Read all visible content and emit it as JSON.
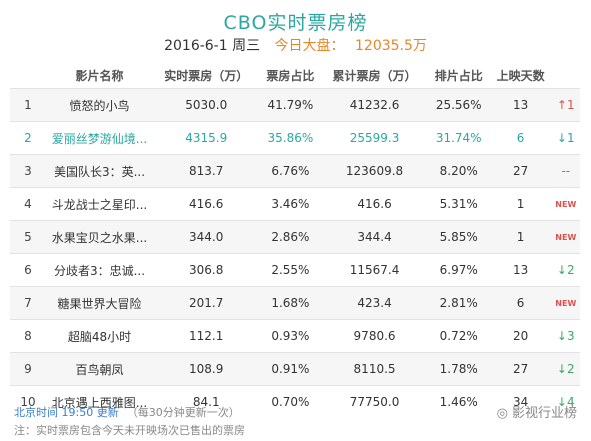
{
  "header": {
    "title": "CBO实时票房榜",
    "date": "2016-6-1 周三",
    "total_label": "今日大盘：",
    "total_value": "12035.5万"
  },
  "columns": [
    "影片名称",
    "实时票房（万）",
    "票房占比",
    "累计票房（万）",
    "排片占比",
    "上映天数"
  ],
  "rows": [
    {
      "rank": "1",
      "name": "愤怒的小鸟",
      "rt": "5030.0",
      "share": "41.79%",
      "cum": "41232.6",
      "sched": "25.56%",
      "days": "13",
      "trend": "↑1",
      "trend_type": "up"
    },
    {
      "rank": "2",
      "name": "爱丽丝梦游仙境...",
      "rt": "4315.9",
      "share": "35.86%",
      "cum": "25599.3",
      "sched": "31.74%",
      "days": "6",
      "trend": "↓1",
      "trend_type": "down"
    },
    {
      "rank": "3",
      "name": "美国队长3：英...",
      "rt": "813.7",
      "share": "6.76%",
      "cum": "123609.8",
      "sched": "8.20%",
      "days": "27",
      "trend": "--",
      "trend_type": "same"
    },
    {
      "rank": "4",
      "name": "斗龙战士之星印...",
      "rt": "416.6",
      "share": "3.46%",
      "cum": "416.6",
      "sched": "5.31%",
      "days": "1",
      "trend": "NEW",
      "trend_type": "new"
    },
    {
      "rank": "5",
      "name": "水果宝贝之水果...",
      "rt": "344.0",
      "share": "2.86%",
      "cum": "344.4",
      "sched": "5.85%",
      "days": "1",
      "trend": "NEW",
      "trend_type": "new"
    },
    {
      "rank": "6",
      "name": "分歧者3：忠诚...",
      "rt": "306.8",
      "share": "2.55%",
      "cum": "11567.4",
      "sched": "6.97%",
      "days": "13",
      "trend": "↓2",
      "trend_type": "down"
    },
    {
      "rank": "7",
      "name": "糖果世界大冒险",
      "rt": "201.7",
      "share": "1.68%",
      "cum": "423.4",
      "sched": "2.81%",
      "days": "6",
      "trend": "NEW",
      "trend_type": "new"
    },
    {
      "rank": "8",
      "name": "超脑48小时",
      "rt": "112.1",
      "share": "0.93%",
      "cum": "9780.6",
      "sched": "0.72%",
      "days": "20",
      "trend": "↓3",
      "trend_type": "down"
    },
    {
      "rank": "9",
      "name": "百鸟朝凤",
      "rt": "108.9",
      "share": "0.91%",
      "cum": "8110.5",
      "sched": "1.78%",
      "days": "27",
      "trend": "↓2",
      "trend_type": "down"
    },
    {
      "rank": "10",
      "name": "北京遇上西雅图...",
      "rt": "84.1",
      "share": "0.70%",
      "cum": "77750.0",
      "sched": "1.46%",
      "days": "34",
      "trend": "↓4",
      "trend_type": "down"
    }
  ],
  "footer": {
    "update": "北京时间 19:50 更新",
    "update_note": "（每30分钟更新一次）",
    "note": "注：实时票房包含今天未开映场次已售出的票房"
  },
  "watermark": "影视行业榜",
  "colors": {
    "accent": "#2aa8a0",
    "orange": "#e8872a",
    "up": "#d9534f",
    "down": "#3aa86a"
  }
}
